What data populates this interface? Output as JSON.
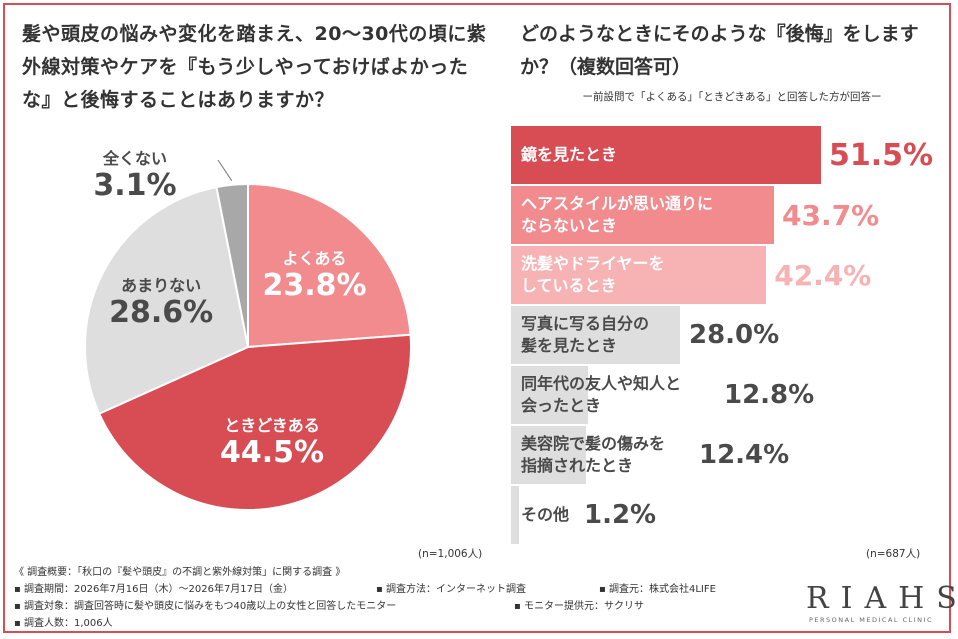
{
  "left_title": "髪や頭皮の悩みや変化を踏まえ、20〜30代の頃に紫外線対策やケアを『もう少しやっておけばよかったな』と後悔することはありますか？",
  "right_title": "どのようなときにそのような『後悔』をしますか？（複数回答可）",
  "right_subtitle": "ー前設問で「よくある」「ときどきある」と回答した方が回答ー",
  "n_left": "(n=1,006人)",
  "n_right": "(n=687人)",
  "colors": {
    "border": "#d84c53",
    "dark_red": "#d84c53",
    "pink": "#f28b8e",
    "light_pink": "#f7b2b3",
    "gray": "#dedede",
    "dark_gray": "#a8a8a8"
  },
  "chart_data": [
    {
      "type": "pie",
      "title": "",
      "slices": [
        {
          "label": "よくある",
          "value": 23.8,
          "display": "23.8%"
        },
        {
          "label": "ときどきある",
          "value": 44.5,
          "display": "44.5%"
        },
        {
          "label": "あまりない",
          "value": 28.6,
          "display": "28.6%"
        },
        {
          "label": "全くない",
          "value": 3.1,
          "display": "3.1%"
        }
      ]
    },
    {
      "type": "bar",
      "orientation": "horizontal",
      "categories": [
        "鏡を見たとき",
        "ヘアスタイルが思い通りに\nならないとき",
        "洗髪やドライヤーを\nしているとき",
        "写真に写る自分の\n髪を見たとき",
        "同年代の友人や知人と\n会ったとき",
        "美容院で髪の傷みを\n指摘されたとき",
        "その他"
      ],
      "values": [
        51.5,
        43.7,
        42.4,
        28.0,
        12.8,
        12.4,
        1.2
      ],
      "value_labels": [
        "51.5%",
        "43.7%",
        "42.4%",
        "28.0%",
        "12.8%",
        "12.4%",
        "1.2%"
      ]
    }
  ],
  "footer": {
    "summary": "《 調査概要：「秋口の『髪や頭皮』の不調と紫外線対策」に関する調査 》",
    "period": "▪ 調査期間：2026年7月16日（木）〜2026年7月17日（金）",
    "method": "▪ 調査方法：インターネット調査",
    "source": "▪ 調査元：株式会社4LIFE",
    "target": "▪ 調査対象：調査回答時に髪や頭皮に悩みをもつ40歳以上の女性と回答したモニター",
    "provider": "▪ モニター提供元：サクリサ",
    "count": "▪ 調査人数：1,006人"
  },
  "logo": {
    "mark": "RIAHS",
    "sub": "PERSONAL MEDICAL CLINIC"
  }
}
